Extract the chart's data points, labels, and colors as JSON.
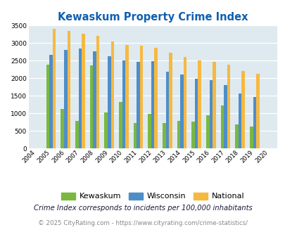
{
  "title": "Kewaskum Property Crime Index",
  "years": [
    2004,
    2005,
    2006,
    2007,
    2008,
    2009,
    2010,
    2011,
    2012,
    2013,
    2014,
    2015,
    2016,
    2017,
    2018,
    2019,
    2020
  ],
  "kewaskum": [
    0,
    2380,
    1130,
    775,
    2360,
    1020,
    1330,
    730,
    980,
    715,
    790,
    760,
    940,
    1230,
    680,
    630,
    0
  ],
  "wisconsin": [
    0,
    2670,
    2810,
    2840,
    2760,
    2620,
    2510,
    2470,
    2490,
    2190,
    2100,
    1990,
    1950,
    1800,
    1560,
    1470,
    0
  ],
  "national": [
    0,
    3415,
    3345,
    3265,
    3210,
    3045,
    2950,
    2920,
    2870,
    2720,
    2600,
    2500,
    2460,
    2380,
    2210,
    2120,
    0
  ],
  "kewaskum_color": "#7ab840",
  "wisconsin_color": "#4e8ec8",
  "national_color": "#f5b942",
  "bg_color": "#deeaf0",
  "title_color": "#1060b0",
  "ylim": [
    0,
    3500
  ],
  "yticks": [
    0,
    500,
    1000,
    1500,
    2000,
    2500,
    3000,
    3500
  ],
  "footnote1": "Crime Index corresponds to incidents per 100,000 inhabitants",
  "footnote2": "© 2025 CityRating.com - https://www.cityrating.com/crime-statistics/",
  "legend_labels": [
    "Kewaskum",
    "Wisconsin",
    "National"
  ]
}
